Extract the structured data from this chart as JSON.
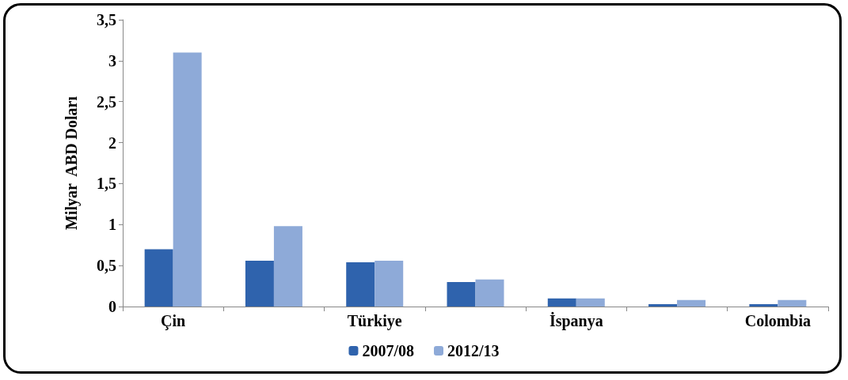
{
  "chart_data": {
    "type": "bar",
    "ylabel": "Milyar  ABD Doları",
    "categories": [
      "Çin",
      null,
      "Türkiye",
      null,
      "İspanya",
      null,
      "Colombia"
    ],
    "series": [
      {
        "name": "2007/08",
        "color": "#2f63ad",
        "values": [
          0.7,
          0.56,
          0.54,
          0.3,
          0.1,
          0.03,
          0.03
        ]
      },
      {
        "name": "2012/13",
        "color": "#8eaad8",
        "values": [
          3.1,
          0.98,
          0.56,
          0.33,
          0.1,
          0.08,
          0.08
        ]
      }
    ],
    "ylim": [
      0,
      3.5
    ],
    "yticks": [
      0,
      {
        "value": 0.5,
        "label": "0,5"
      },
      1,
      {
        "value": 1.5,
        "label": "1,5"
      },
      2,
      {
        "value": 2.5,
        "label": "2,5"
      },
      3,
      {
        "value": 3.5,
        "label": "3,5"
      }
    ],
    "grid": false,
    "legend": "bottom"
  }
}
